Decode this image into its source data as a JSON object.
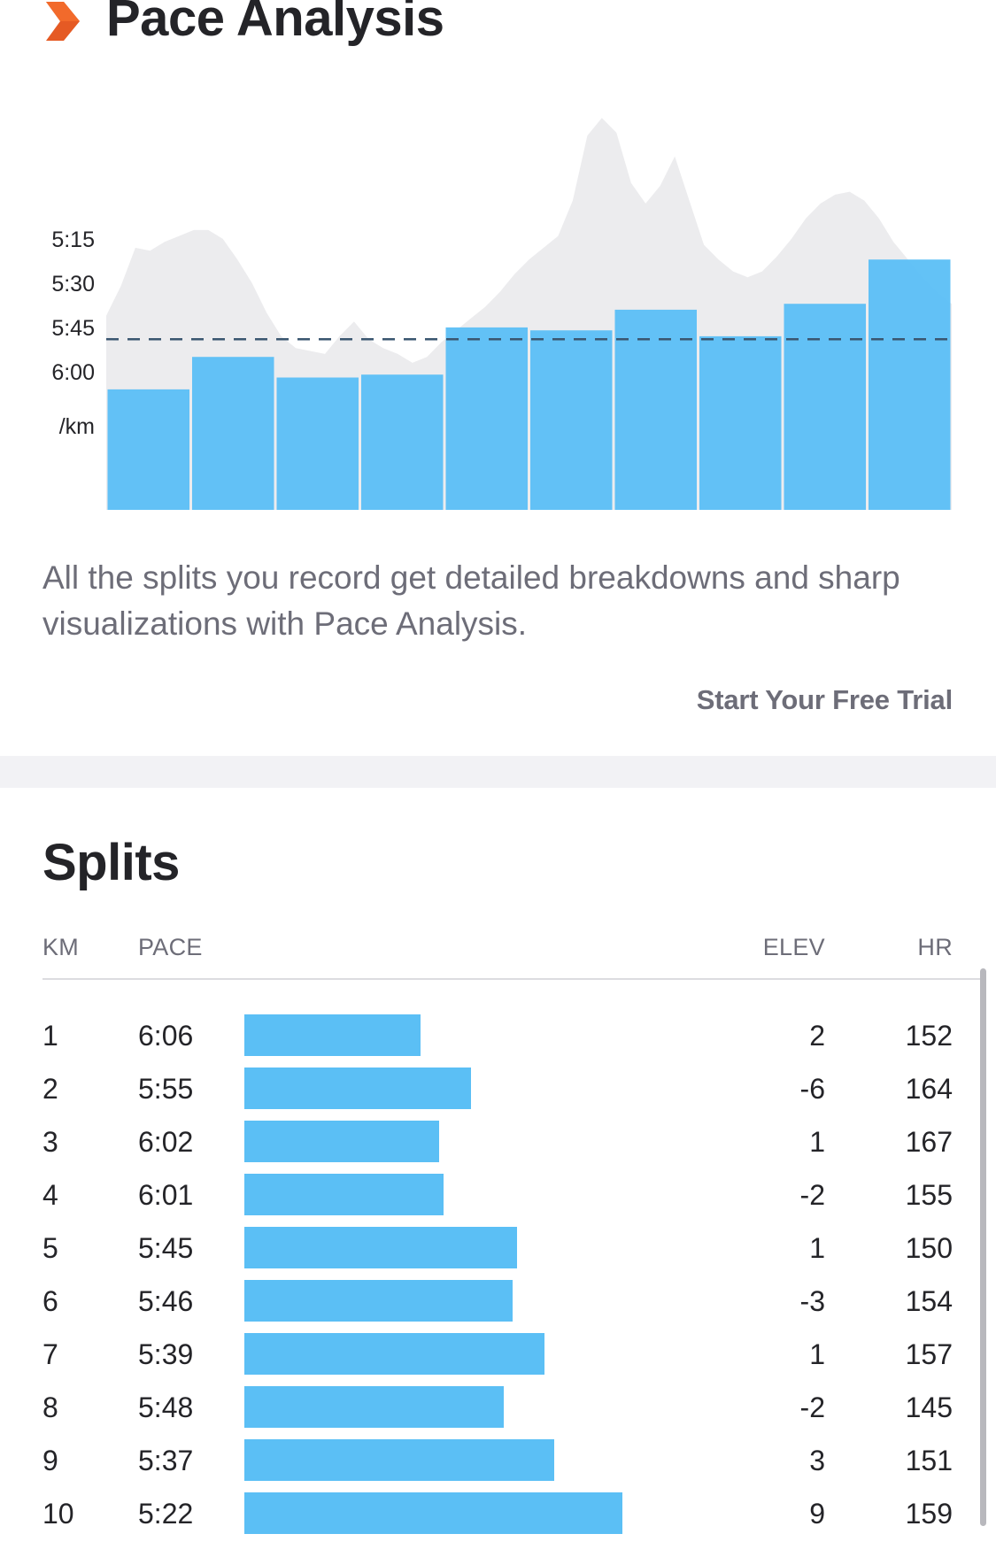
{
  "pace_analysis": {
    "title": "Pace Analysis",
    "description": "All the splits you record get detailed breakdowns and sharp visualizations with Pace Analysis.",
    "cta_label": "Start Your Free Trial",
    "icon": "orange-chevron-icon"
  },
  "chart_data": {
    "type": "bar",
    "categories": [
      "1",
      "2",
      "3",
      "4",
      "5",
      "6",
      "7",
      "8",
      "9",
      "10"
    ],
    "values": [
      "6:06",
      "5:55",
      "6:02",
      "6:01",
      "5:45",
      "5:46",
      "5:39",
      "5:48",
      "5:37",
      "5:22"
    ],
    "values_seconds_per_km": [
      366,
      355,
      362,
      361,
      345,
      346,
      339,
      348,
      337,
      322
    ],
    "y_tick_labels": [
      "5:15",
      "5:30",
      "5:45",
      "6:00",
      "/km"
    ],
    "y_ticks_seconds": [
      315,
      330,
      345,
      360
    ],
    "reference_line": "5:49",
    "reference_line_seconds": 349,
    "y_axis_inverted": true,
    "bar_color": "#5bbff5",
    "background_area_color": "#ececee",
    "reference_line_color": "#3a5670",
    "background_area_profile": [
      [
        0,
        341
      ],
      [
        1,
        331
      ],
      [
        2,
        318
      ],
      [
        3,
        319
      ],
      [
        4,
        316
      ],
      [
        5,
        314
      ],
      [
        6,
        312
      ],
      [
        7,
        312
      ],
      [
        8,
        315
      ],
      [
        9,
        322
      ],
      [
        10,
        330
      ],
      [
        11,
        340
      ],
      [
        12,
        348
      ],
      [
        13,
        352
      ],
      [
        14,
        353
      ],
      [
        15,
        354
      ],
      [
        16,
        348
      ],
      [
        17,
        343
      ],
      [
        18,
        349
      ],
      [
        19,
        352
      ],
      [
        20,
        354
      ],
      [
        21,
        357
      ],
      [
        22,
        355
      ],
      [
        23,
        350
      ],
      [
        24,
        346
      ],
      [
        25,
        342
      ],
      [
        26,
        338
      ],
      [
        27,
        333
      ],
      [
        28,
        327
      ],
      [
        29,
        322
      ],
      [
        30,
        318
      ],
      [
        31,
        314
      ],
      [
        32,
        302
      ],
      [
        33,
        280
      ],
      [
        34,
        274
      ],
      [
        35,
        279
      ],
      [
        36,
        296
      ],
      [
        37,
        303
      ],
      [
        38,
        297
      ],
      [
        39,
        287
      ],
      [
        40,
        302
      ],
      [
        41,
        317
      ],
      [
        42,
        322
      ],
      [
        43,
        326
      ],
      [
        44,
        328
      ],
      [
        45,
        326
      ],
      [
        46,
        321
      ],
      [
        47,
        315
      ],
      [
        48,
        308
      ],
      [
        49,
        303
      ],
      [
        50,
        300
      ],
      [
        51,
        299
      ],
      [
        52,
        302
      ],
      [
        53,
        308
      ],
      [
        54,
        316
      ],
      [
        55,
        322
      ],
      [
        56,
        328
      ],
      [
        57,
        333
      ],
      [
        58,
        337
      ]
    ]
  },
  "splits": {
    "title": "Splits",
    "headers": {
      "km": "KM",
      "pace": "PACE",
      "elev": "ELEV",
      "hr": "HR"
    },
    "rows": [
      {
        "km": "1",
        "pace": "6:06",
        "pace_seconds": 366,
        "elev": "2",
        "hr": "152"
      },
      {
        "km": "2",
        "pace": "5:55",
        "pace_seconds": 355,
        "elev": "-6",
        "hr": "164"
      },
      {
        "km": "3",
        "pace": "6:02",
        "pace_seconds": 362,
        "elev": "1",
        "hr": "167"
      },
      {
        "km": "4",
        "pace": "6:01",
        "pace_seconds": 361,
        "elev": "-2",
        "hr": "155"
      },
      {
        "km": "5",
        "pace": "5:45",
        "pace_seconds": 345,
        "elev": "1",
        "hr": "150"
      },
      {
        "km": "6",
        "pace": "5:46",
        "pace_seconds": 346,
        "elev": "-3",
        "hr": "154"
      },
      {
        "km": "7",
        "pace": "5:39",
        "pace_seconds": 339,
        "elev": "1",
        "hr": "157"
      },
      {
        "km": "8",
        "pace": "5:48",
        "pace_seconds": 348,
        "elev": "-2",
        "hr": "145"
      },
      {
        "km": "9",
        "pace": "5:37",
        "pace_seconds": 337,
        "elev": "3",
        "hr": "151"
      },
      {
        "km": "10",
        "pace": "5:22",
        "pace_seconds": 322,
        "elev": "9",
        "hr": "159"
      }
    ]
  }
}
